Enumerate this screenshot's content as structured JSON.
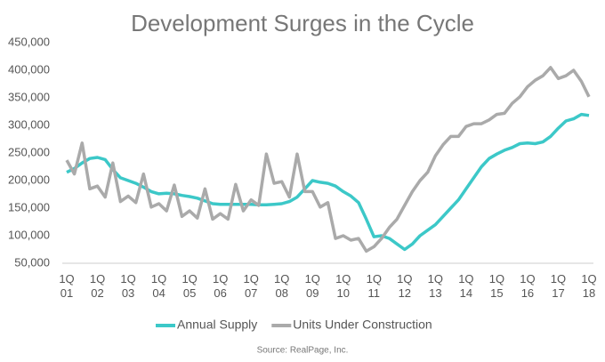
{
  "chart_data": {
    "type": "line",
    "title": "Development Surges in the Cycle",
    "source": "Source: RealPage, Inc.",
    "categories": [
      "1Q 01",
      null,
      null,
      null,
      "1Q 02",
      null,
      null,
      null,
      "1Q 03",
      null,
      null,
      null,
      "1Q 04",
      null,
      null,
      null,
      "1Q 05",
      null,
      null,
      null,
      "1Q 06",
      null,
      null,
      null,
      "1Q 07",
      null,
      null,
      null,
      "1Q 08",
      null,
      null,
      null,
      "1Q 09",
      null,
      null,
      null,
      "1Q 10",
      null,
      null,
      null,
      "1Q 11",
      null,
      null,
      null,
      "1Q 12",
      null,
      null,
      null,
      "1Q 13",
      null,
      null,
      null,
      "1Q 14",
      null,
      null,
      null,
      "1Q 15",
      null,
      null,
      null,
      "1Q 16",
      null,
      null,
      null,
      "1Q 17",
      null,
      null,
      null,
      "1Q 18"
    ],
    "series": [
      {
        "name": "Annual Supply",
        "color": "#3cc8c8",
        "values": [
          215000,
          222000,
          232000,
          240000,
          242000,
          238000,
          220000,
          205000,
          200000,
          195000,
          188000,
          180000,
          176000,
          177000,
          176000,
          173000,
          171000,
          168000,
          163000,
          158000,
          157000,
          157000,
          157000,
          157000,
          157000,
          156000,
          156000,
          157000,
          158000,
          162000,
          170000,
          185000,
          200000,
          197000,
          195000,
          190000,
          180000,
          172000,
          160000,
          130000,
          98000,
          100000,
          95000,
          85000,
          75000,
          85000,
          100000,
          110000,
          120000,
          135000,
          150000,
          165000,
          185000,
          205000,
          225000,
          240000,
          248000,
          255000,
          260000,
          267000,
          268000,
          267000,
          270000,
          280000,
          295000,
          308000,
          312000,
          320000,
          318000
        ]
      },
      {
        "name": "Units Under Construction",
        "color": "#aaaaaa",
        "values": [
          237000,
          212000,
          268000,
          185000,
          190000,
          170000,
          232000,
          162000,
          172000,
          160000,
          212000,
          152000,
          158000,
          145000,
          192000,
          135000,
          145000,
          132000,
          185000,
          130000,
          140000,
          130000,
          193000,
          145000,
          165000,
          155000,
          248000,
          195000,
          198000,
          170000,
          248000,
          180000,
          180000,
          152000,
          160000,
          95000,
          100000,
          92000,
          95000,
          72000,
          80000,
          95000,
          115000,
          130000,
          155000,
          180000,
          200000,
          215000,
          245000,
          265000,
          280000,
          280000,
          298000,
          303000,
          303000,
          310000,
          320000,
          322000,
          340000,
          352000,
          370000,
          382000,
          390000,
          405000,
          385000,
          390000,
          400000,
          380000,
          352000
        ]
      }
    ],
    "ylim": [
      50000,
      450000
    ],
    "yticks": [
      {
        "value": 50000,
        "label": "50,000"
      },
      {
        "value": 100000,
        "label": "100,000"
      },
      {
        "value": 150000,
        "label": "150,000"
      },
      {
        "value": 200000,
        "label": "200,000"
      },
      {
        "value": 250000,
        "label": "250,000"
      },
      {
        "value": 300000,
        "label": "300,000"
      },
      {
        "value": 350000,
        "label": "350,000"
      },
      {
        "value": 400000,
        "label": "400,000"
      },
      {
        "value": 450000,
        "label": "450,000"
      }
    ],
    "grid": false
  }
}
